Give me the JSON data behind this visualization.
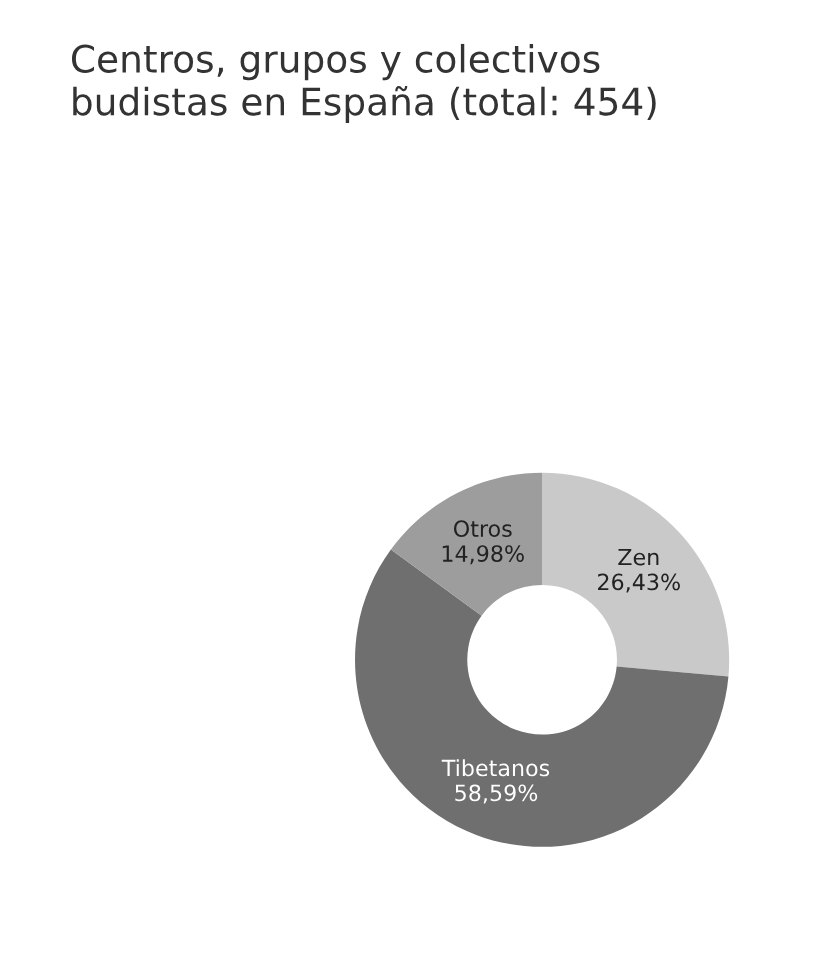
{
  "chart_data": {
    "type": "donut",
    "title": "Centros, grupos y colectivos\nbudistas en España (total: 454)",
    "categories": [
      "Zen",
      "Tibetanos",
      "Otros"
    ],
    "values": [
      26.43,
      58.59,
      14.98
    ],
    "value_labels": [
      "26,43%",
      "58,59%",
      "14,98%"
    ],
    "colors": [
      "#c9c9c9",
      "#6f6f6f",
      "#9d9d9d"
    ],
    "legend": false
  }
}
